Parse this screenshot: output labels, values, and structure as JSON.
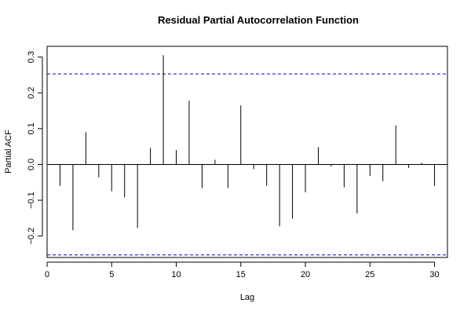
{
  "chart_data": {
    "type": "bar",
    "title": "Residual Partial Autocorrelation Function",
    "xlabel": "Lag",
    "ylabel": "Partial ACF",
    "xlim": [
      0,
      31
    ],
    "ylim": [
      -0.26,
      0.33
    ],
    "x_ticks": [
      0,
      5,
      10,
      15,
      20,
      25,
      30
    ],
    "y_ticks": [
      -0.2,
      -0.1,
      0.0,
      0.1,
      0.2,
      0.3
    ],
    "y_tick_labels": [
      "−0.2",
      "−0.1",
      "0.0",
      "0.1",
      "0.2",
      "0.3"
    ],
    "confidence_bounds": [
      0.253,
      -0.253
    ],
    "lags": [
      1,
      2,
      3,
      4,
      5,
      6,
      7,
      8,
      9,
      10,
      11,
      12,
      13,
      14,
      15,
      16,
      17,
      18,
      19,
      20,
      21,
      22,
      23,
      24,
      25,
      26,
      27,
      28,
      29,
      30
    ],
    "values": [
      -0.06,
      -0.184,
      0.09,
      -0.036,
      -0.075,
      -0.092,
      -0.178,
      0.046,
      0.305,
      0.04,
      0.178,
      -0.066,
      0.013,
      -0.066,
      0.165,
      -0.013,
      -0.06,
      -0.173,
      -0.152,
      -0.078,
      0.048,
      -0.006,
      -0.064,
      -0.137,
      -0.032,
      -0.047,
      0.109,
      -0.01,
      0.005,
      -0.06
    ],
    "colors": {
      "bars": "#000000",
      "confidence": "#0000cc",
      "zero_line": "#000000"
    }
  }
}
